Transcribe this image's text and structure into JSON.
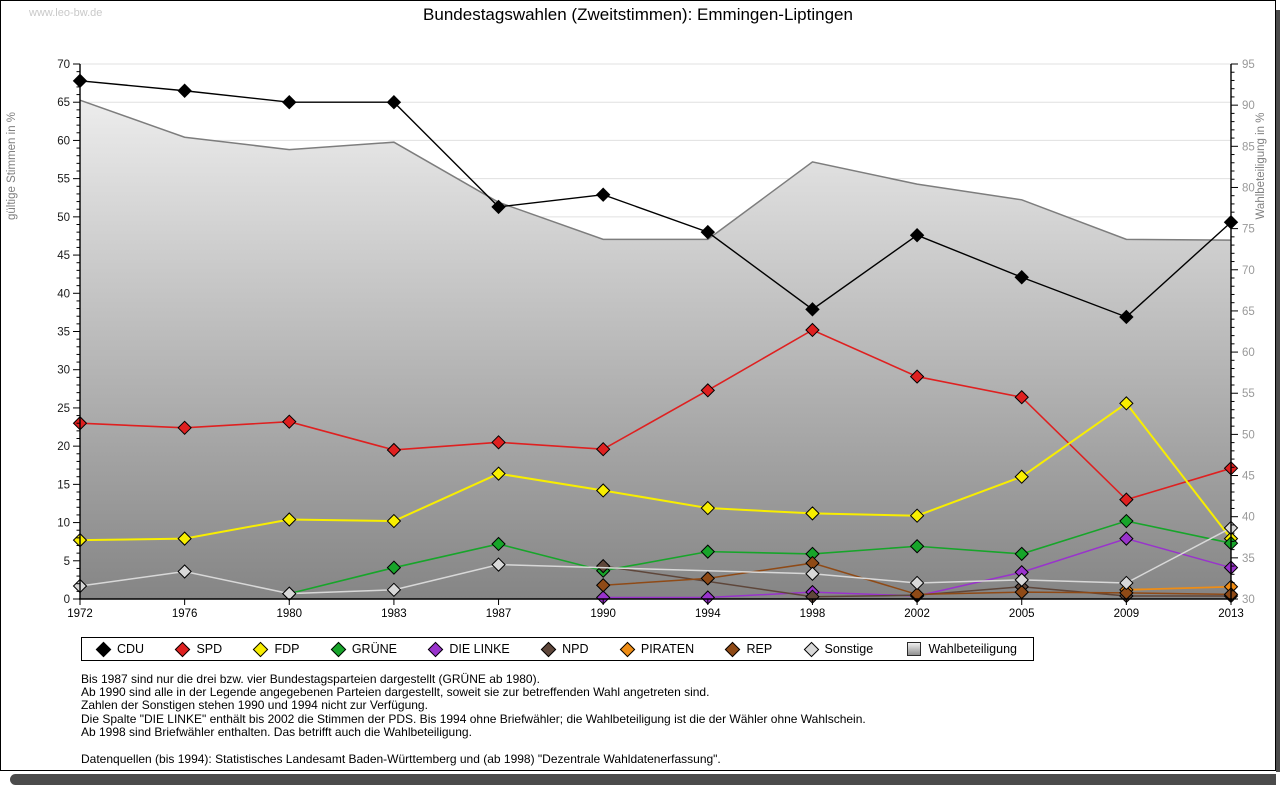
{
  "watermark": "www.leo-bw.de",
  "title": "Bundestagswahlen (Zweitstimmen): Emmingen-Liptingen",
  "chart_data": {
    "type": "line",
    "x_years": [
      1972,
      1976,
      1980,
      1983,
      1987,
      1990,
      1994,
      1998,
      2002,
      2005,
      2009,
      2013
    ],
    "axis_left": {
      "label": "gültige Stimmen in %",
      "min": 0,
      "max": 70,
      "tick_step": 5,
      "minor_step": 1
    },
    "axis_right": {
      "label": "Wahlbeteiligung in %",
      "min": 30,
      "max": 95,
      "tick_step": 5,
      "minor_step": 1
    },
    "grid": true,
    "legend_position": "bottom",
    "series": [
      {
        "name": "CDU",
        "color": "#000000",
        "axis": "left",
        "marker": "diamond",
        "line_width": 1.4,
        "values": [
          67.8,
          66.5,
          65.0,
          65.0,
          51.3,
          52.9,
          48.0,
          37.9,
          47.6,
          42.1,
          36.9,
          49.3
        ]
      },
      {
        "name": "SPD",
        "color": "#df2020",
        "axis": "left",
        "marker": "diamond",
        "line_width": 1.6,
        "values": [
          23.0,
          22.4,
          23.2,
          19.5,
          20.5,
          19.6,
          27.3,
          35.2,
          29.1,
          26.4,
          13.0,
          17.1
        ]
      },
      {
        "name": "FDP",
        "color": "#f8ee00",
        "axis": "left",
        "marker": "diamond",
        "line_width": 2,
        "values": [
          7.7,
          7.9,
          10.4,
          10.2,
          16.4,
          14.2,
          11.9,
          11.2,
          10.9,
          16.0,
          25.6,
          7.9
        ]
      },
      {
        "name": "GRÜNE",
        "color": "#17a52a",
        "axis": "left",
        "marker": "diamond",
        "line_width": 1.6,
        "values": [
          null,
          null,
          0.7,
          4.1,
          7.2,
          3.7,
          6.2,
          5.9,
          6.9,
          5.9,
          10.2,
          7.3
        ]
      },
      {
        "name": "DIE LINKE",
        "color": "#9933cc",
        "axis": "left",
        "marker": "diamond",
        "line_width": 1.5,
        "values": [
          null,
          null,
          null,
          null,
          null,
          0.2,
          0.2,
          0.9,
          0.4,
          3.5,
          7.9,
          4.1
        ]
      },
      {
        "name": "NPD",
        "color": "#5e463a",
        "axis": "left",
        "marker": "diamond",
        "line_width": 1.5,
        "values": [
          null,
          null,
          null,
          null,
          null,
          4.3,
          null,
          0.3,
          0.5,
          1.6,
          0.4,
          0.4
        ]
      },
      {
        "name": "PIRATEN",
        "color": "#ef8d15",
        "axis": "left",
        "marker": "diamond",
        "line_width": 1.8,
        "values": [
          null,
          null,
          null,
          null,
          null,
          null,
          null,
          null,
          null,
          null,
          1.2,
          1.6
        ]
      },
      {
        "name": "REP",
        "color": "#8f4a16",
        "axis": "left",
        "marker": "diamond",
        "line_width": 1.5,
        "values": [
          null,
          null,
          null,
          null,
          null,
          1.8,
          2.7,
          4.7,
          0.6,
          0.9,
          0.8,
          0.6
        ]
      },
      {
        "name": "Sonstige",
        "color": "#d8d8d8",
        "axis": "left",
        "marker": "diamond",
        "line_width": 1.5,
        "values": [
          1.7,
          3.6,
          0.7,
          1.2,
          4.5,
          null,
          null,
          3.3,
          2.1,
          2.5,
          2.1,
          9.3
        ]
      },
      {
        "name": "Wahlbeteiligung",
        "type": "area",
        "axis": "right",
        "color_top": "#f4f4f4",
        "color_bottom": "#858585",
        "line_color": "#7d7d7d",
        "values": [
          90.6,
          86.1,
          84.6,
          85.5,
          78.2,
          73.7,
          73.7,
          83.1,
          80.4,
          78.5,
          73.7,
          73.6
        ]
      }
    ]
  },
  "footnotes": [
    "Bis 1987 sind nur die drei bzw. vier Bundestagsparteien dargestellt (GRÜNE ab 1980).",
    "Ab 1990 sind alle in der Legende angegebenen Parteien dargestellt, soweit sie zur betreffenden Wahl angetreten sind.",
    "Zahlen der Sonstigen stehen 1990 und 1994 nicht zur Verfügung.",
    "Die Spalte \"DIE LINKE\" enthält bis 2002 die Stimmen der PDS. Bis 1994 ohne Briefwähler; die Wahlbeteiligung ist die der Wähler ohne Wahlschein.",
    "Ab 1998 sind Briefwähler enthalten. Das betrifft auch die Wahlbeteiligung."
  ],
  "source": "Datenquellen (bis 1994): Statistisches Landesamt Baden-Württemberg und (ab 1998) \"Dezentrale Wahldatenerfassung\"."
}
